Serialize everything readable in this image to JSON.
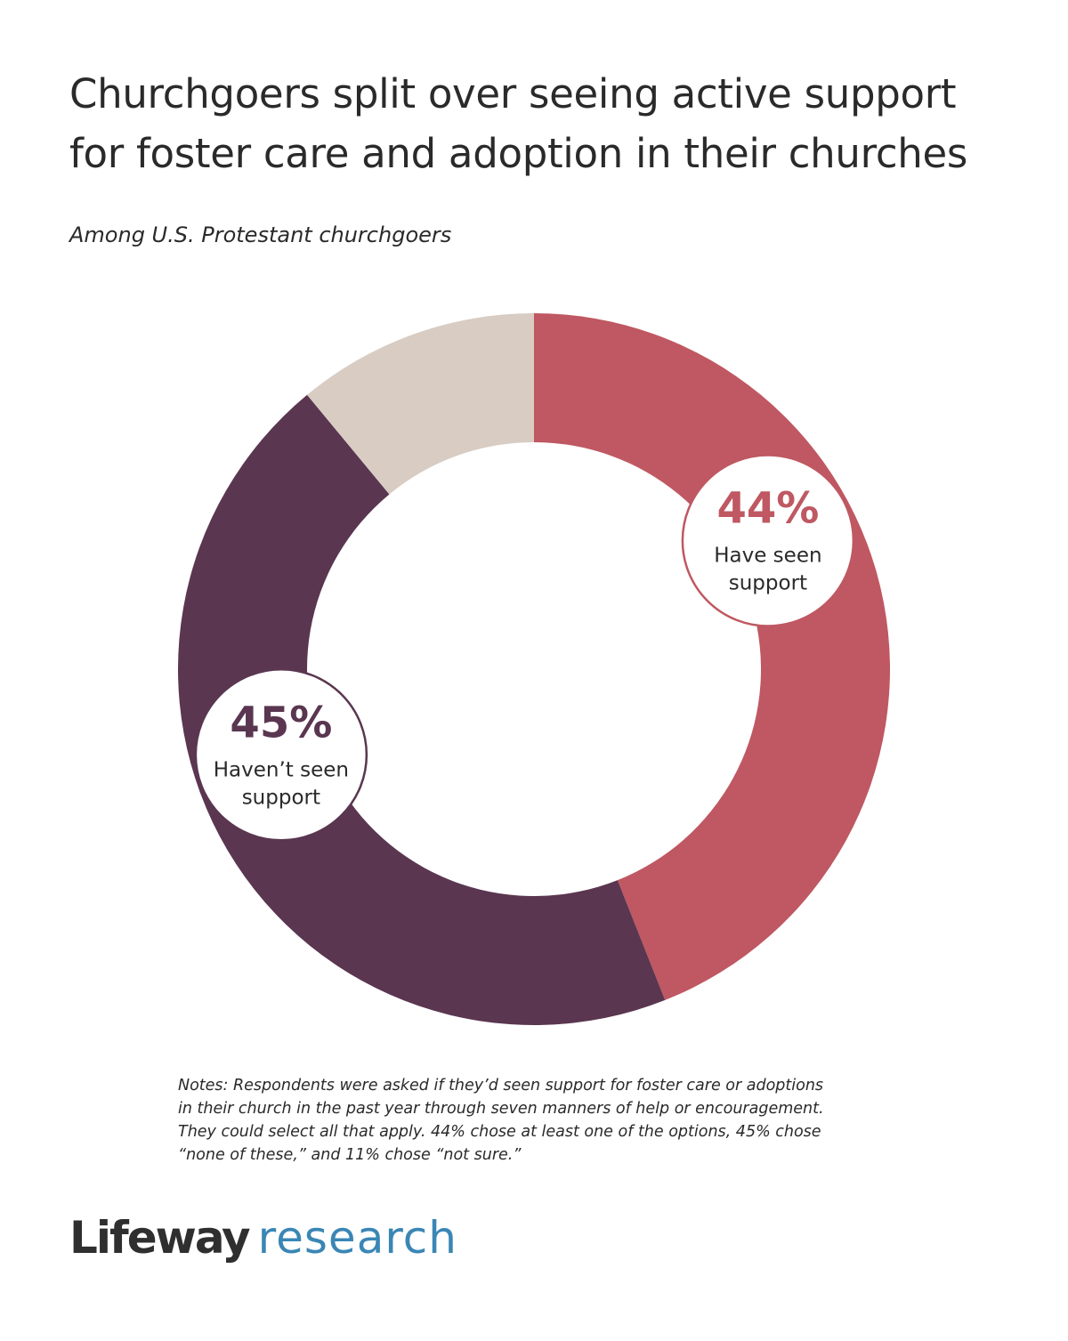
{
  "title_lines": [
    "Churchgoers split over seeing active support",
    "for foster care and adoption in their churches"
  ],
  "subtitle": "Among U.S. Protestant churchgoers",
  "chart_data": {
    "type": "pie",
    "style": "donut",
    "start": "top, clockwise",
    "slices": [
      {
        "value": 44,
        "label": "44%",
        "caption_lines": [
          "Have seen",
          "support"
        ],
        "color": "#bf5862"
      },
      {
        "value": 45,
        "label": "45%",
        "caption_lines": [
          "Haven’t seen",
          "support"
        ],
        "color": "#5a3650"
      },
      {
        "value": 11,
        "color": "#d8ccc3"
      }
    ]
  },
  "notes_lines": [
    "Notes: Respondents were asked if they’d seen support for foster care or adoptions",
    "in their church in the past year through seven manners of help or encouragement.",
    "They could select all that apply. 44% chose at least one of the options, 45% chose",
    "“none of these,” and 11% chose “not sure.”"
  ],
  "logo": {
    "brand": "Lifeway",
    "sub": "research",
    "brand_color": "#2f2f2f",
    "sub_color": "#3a86b5"
  }
}
